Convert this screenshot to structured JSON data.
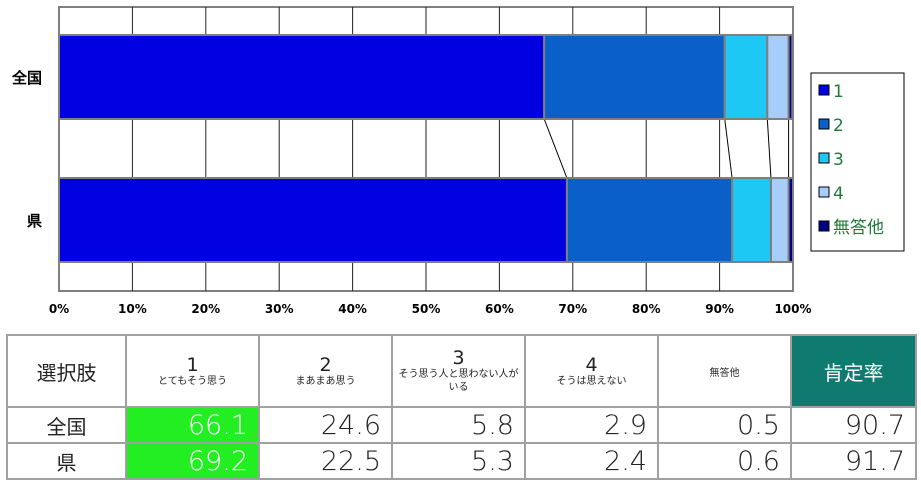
{
  "chart_data": {
    "type": "bar",
    "orientation": "horizontal",
    "stacked": true,
    "categories": [
      "全国",
      "県"
    ],
    "series": [
      {
        "name": "1",
        "color": "#0000e0",
        "values": [
          66.1,
          69.2
        ]
      },
      {
        "name": "2",
        "color": "#0a5fc8",
        "values": [
          24.6,
          22.5
        ]
      },
      {
        "name": "3",
        "color": "#1ec8f5",
        "values": [
          5.8,
          5.3
        ]
      },
      {
        "name": "4",
        "color": "#a7cdfa",
        "values": [
          2.9,
          2.4
        ]
      },
      {
        "name": "無答他",
        "color": "#000080",
        "values": [
          0.5,
          0.6
        ]
      }
    ],
    "xlim": [
      0,
      100
    ],
    "x_ticks": [
      "0%",
      "10%",
      "20%",
      "30%",
      "40%",
      "50%",
      "60%",
      "70%",
      "80%",
      "90%",
      "100%"
    ],
    "grid": true,
    "legend_position": "right",
    "series_lines": true
  },
  "table": {
    "header": {
      "first": "選択肢",
      "choices": [
        {
          "num": "1",
          "text": "とてもそう思う"
        },
        {
          "num": "2",
          "text": "まあまあ思う"
        },
        {
          "num": "3",
          "text": "そう思う人と思わない人がいる"
        },
        {
          "num": "4",
          "text": "そうは思えない"
        }
      ],
      "noans": "無答他",
      "kotei": "肯定率"
    },
    "rows": [
      {
        "label": "全国",
        "values": [
          "66.1",
          "24.6",
          "5.8",
          "2.9",
          "0.5",
          "90.7"
        ]
      },
      {
        "label": "県",
        "values": [
          "69.2",
          "22.5",
          "5.3",
          "2.4",
          "0.6",
          "91.7"
        ]
      }
    ]
  }
}
